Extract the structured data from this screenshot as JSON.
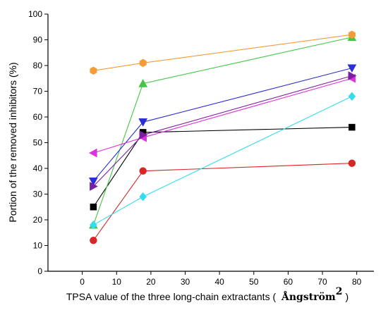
{
  "chart_data": {
    "type": "line",
    "xlabel": "TPSA value of the three long-chain extractants (",
    "xlabel_unit": "Ångström",
    "xlabel_unit_sup": "2",
    "xlabel_close": ")",
    "ylabel": "Portion of the removed inhibitors (%)",
    "xlim": [
      -10,
      85
    ],
    "ylim": [
      0,
      100
    ],
    "xticks": [
      0,
      10,
      20,
      30,
      40,
      50,
      60,
      70,
      80
    ],
    "yticks": [
      0,
      10,
      20,
      30,
      40,
      50,
      60,
      70,
      80,
      90,
      100
    ],
    "x": [
      3.24,
      17.7,
      78.6
    ],
    "grid": false,
    "series": [
      {
        "color": "#000000",
        "marker": "square",
        "values": [
          25,
          54,
          56
        ]
      },
      {
        "color": "#d62728",
        "marker": "circle",
        "values": [
          12,
          39,
          42
        ]
      },
      {
        "color": "#44c644",
        "marker": "triangle-up",
        "values": [
          18,
          73,
          91
        ]
      },
      {
        "color": "#2e2ed6",
        "marker": "triangle-down",
        "values": [
          35,
          58,
          79
        ]
      },
      {
        "color": "#33ddee",
        "marker": "diamond",
        "values": [
          18,
          29,
          68
        ]
      },
      {
        "color": "#dd33dd",
        "marker": "triangle-left",
        "values": [
          46,
          52,
          75
        ]
      },
      {
        "color": "#7b1fa2",
        "marker": "triangle-right",
        "values": [
          33,
          53,
          76
        ]
      },
      {
        "color": "#f39c38",
        "marker": "hexagon",
        "values": [
          78,
          81,
          92
        ]
      }
    ]
  }
}
